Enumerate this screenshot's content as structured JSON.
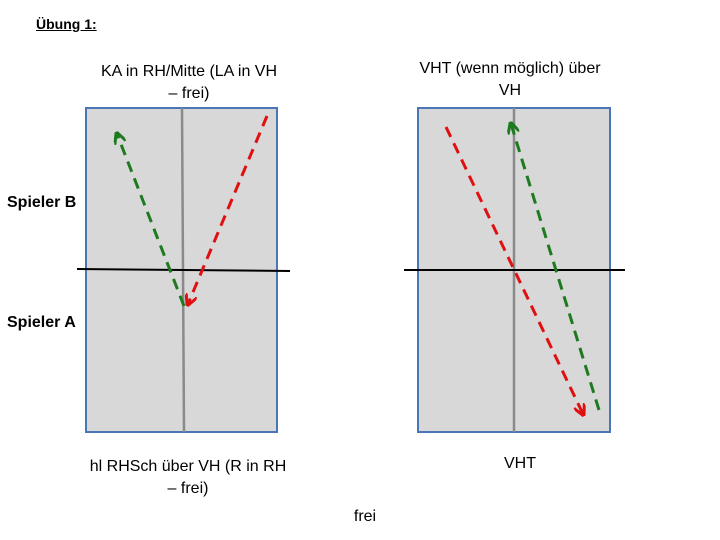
{
  "title": "Übung 1:",
  "left_diagram": {
    "caption_top": "KA in RH/Mitte (LA in VH – frei)",
    "caption_bottom": "hl RHSch über VH (R in RH – frei)"
  },
  "right_diagram": {
    "caption_top": "VHT (wenn möglich) über VH",
    "caption_bottom": "VHT"
  },
  "players": {
    "b": "Spieler B",
    "a": "Spieler A"
  },
  "footer": "frei",
  "colors": {
    "table_fill": "#d8d8d8",
    "table_border": "#4a76b5",
    "center_line": "#8a8a8a",
    "net": "#000000",
    "arrow_green": "#1e7a1e",
    "arrow_red": "#e01010"
  }
}
